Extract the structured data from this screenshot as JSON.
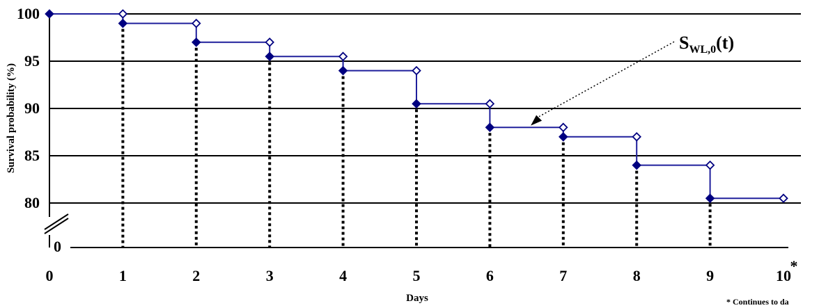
{
  "chart_data": {
    "type": "line",
    "subtype": "step",
    "xlabel": "Days",
    "ylabel": "Survival probability (%)",
    "x_ticks": [
      "0",
      "1",
      "2",
      "3",
      "4",
      "5",
      "6",
      "7",
      "8",
      "9",
      "10"
    ],
    "x_tick_suffix": "*",
    "y_ticks": [
      "80",
      "85",
      "90",
      "95",
      "100"
    ],
    "y_break_label": "0",
    "xlim": [
      0,
      10
    ],
    "ylim": [
      80,
      100
    ],
    "axis_break": true,
    "grid": "horizontal",
    "series": [
      {
        "color": "#1f1f9c",
        "marker_color": "#000080",
        "x": [
          0,
          1,
          2,
          3,
          4,
          5,
          6,
          7,
          8,
          9,
          10
        ],
        "y": [
          100,
          99,
          97,
          95.5,
          94,
          90.5,
          88,
          87,
          84,
          80.5,
          80.5
        ]
      }
    ],
    "annotation": {
      "label_main": "S",
      "label_sub": "WL,0",
      "label_tail": "(t)",
      "target_x": 6.5,
      "target_y": 89
    },
    "footnote": "* Continues to da"
  }
}
